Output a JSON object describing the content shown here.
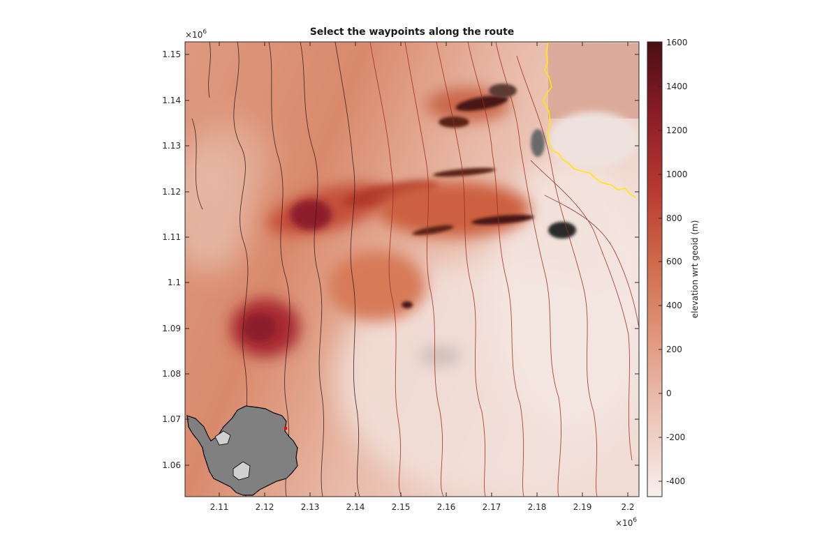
{
  "title": "Select the waypoints along the route",
  "x_axis": {
    "ticks": [
      "2.11",
      "2.12",
      "2.13",
      "2.14",
      "2.15",
      "2.16",
      "2.17",
      "2.18",
      "2.19",
      "2.2"
    ],
    "exponent_base": "×10",
    "exponent": "6"
  },
  "y_axis": {
    "ticks": [
      "1.15",
      "1.14",
      "1.13",
      "1.12",
      "1.11",
      "1.1",
      "1.09",
      "1.08",
      "1.07",
      "1.06"
    ],
    "exponent_base": "×10",
    "exponent": "6"
  },
  "colorbar": {
    "label": "elevation wrt geoid (m)",
    "ticks": [
      "1600",
      "1400",
      "1200",
      "1000",
      "800",
      "600",
      "400",
      "200",
      "0",
      "-200",
      "-400"
    ],
    "colors": [
      "#4a0f12",
      "#8c1c28",
      "#b8382f",
      "#cf6848",
      "#e0977c",
      "#ecc4b6",
      "#f7efed"
    ]
  },
  "colors": {
    "route": "#ffe70a",
    "inset_continent": "#808080",
    "inset_ice_shelf": "#d0d0d0",
    "inset_marker": "#ff0000"
  }
}
